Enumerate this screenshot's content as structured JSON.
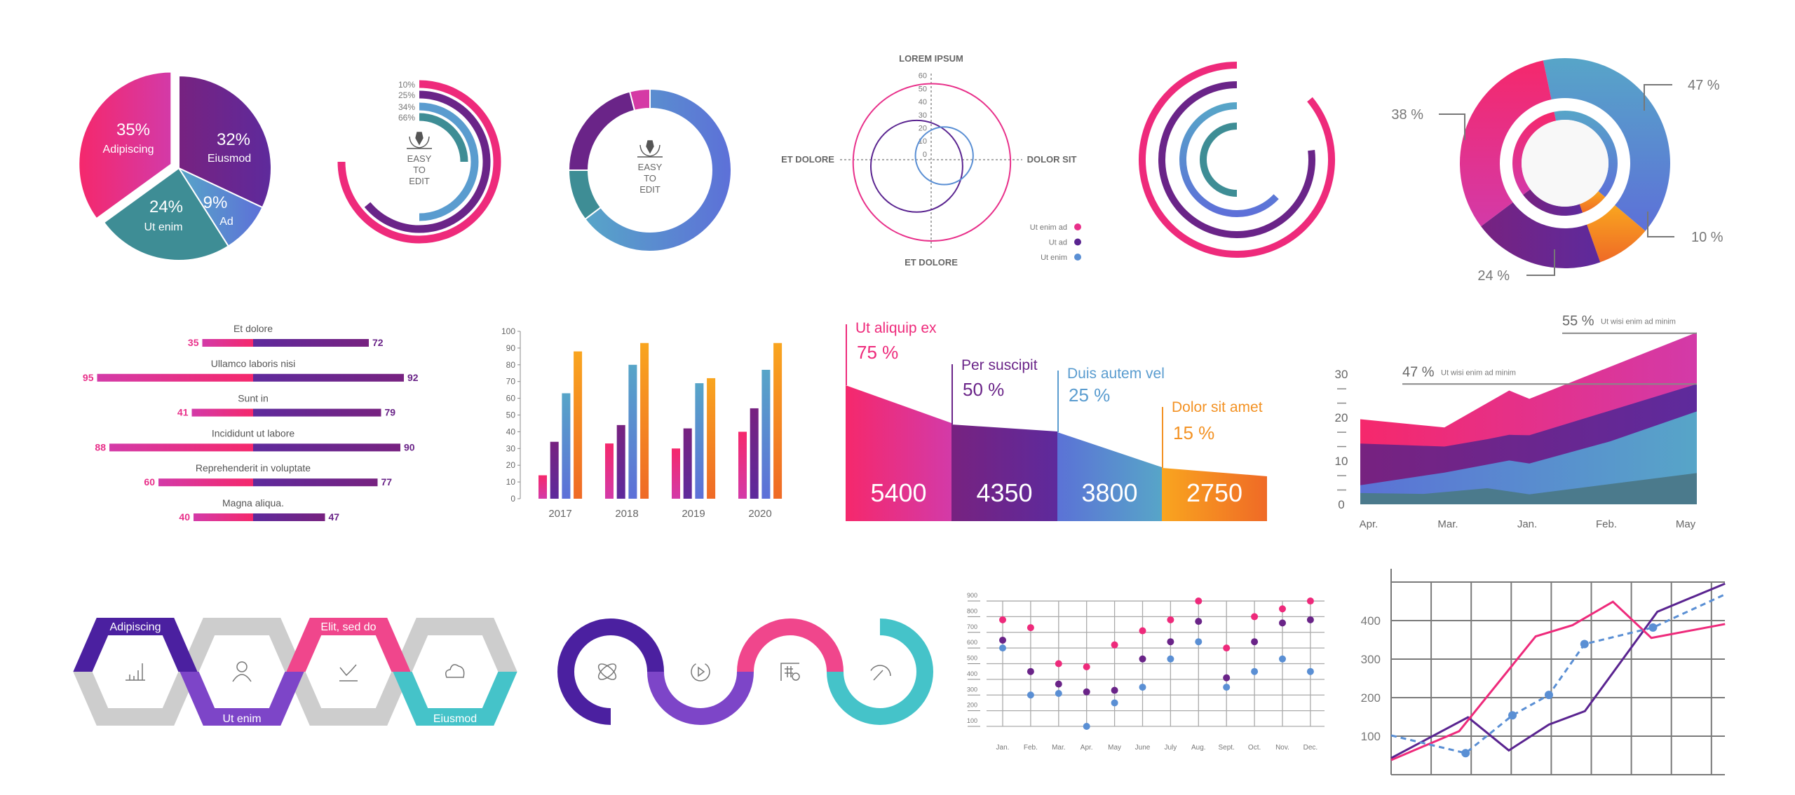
{
  "chart_data": [
    {
      "type": "pie",
      "slices": [
        {
          "label": "Eiusmod",
          "pct_label": "32%",
          "value": 32,
          "color": "#6a2488"
        },
        {
          "label": "Ad",
          "pct_label": "9%",
          "value": 9,
          "color": "#5b86d6"
        },
        {
          "label": "Ut enim",
          "pct_label": "24%",
          "value": 24,
          "color": "#3e8d95"
        },
        {
          "label": "Adipiscing",
          "pct_label": "35%",
          "value": 35,
          "color": "#e8308a",
          "exploded": true
        }
      ]
    },
    {
      "type": "radial_bar",
      "center_text": [
        "EASY",
        "TO",
        "EDIT"
      ],
      "center_icon": "pen-tool-icon",
      "bars": [
        {
          "label": "10%",
          "fraction": 0.75,
          "color": "#ee2a7b"
        },
        {
          "label": "25%",
          "fraction": 0.64,
          "color": "#6a2488"
        },
        {
          "label": "34%",
          "fraction": 0.5,
          "color": "#5a9ccf"
        },
        {
          "label": "66%",
          "fraction": 0.25,
          "color": "#3e8d95"
        }
      ]
    },
    {
      "type": "donut",
      "center_text": [
        "EASY",
        "TO",
        "EDIT"
      ],
      "center_icon": "pen-tool-icon",
      "segments": [
        {
          "value": 64.7,
          "color": "#5b8fd2"
        },
        {
          "value": 10.3,
          "color": "#3e8d95"
        },
        {
          "value": 21,
          "color": "#6a2488"
        },
        {
          "value": 4,
          "color": "#d53aa5"
        }
      ]
    },
    {
      "type": "polar_circles",
      "title": "LOREM IPSUM",
      "axis_labels": {
        "left": "ET DOLORE",
        "right": "DOLOR SIT",
        "bottom": "ET DOLORE"
      },
      "radial_ticks": [
        "0",
        "10",
        "20",
        "30",
        "40",
        "50",
        "60"
      ],
      "series": [
        {
          "name": "Ut enim ad",
          "color": "#e8308a",
          "center": [
            0.5,
            -2
          ],
          "radius": 60
        },
        {
          "name": "Ut ad",
          "color": "#5a2490",
          "center": [
            -11,
            -5
          ],
          "radius": 35
        },
        {
          "name": "Ut enim",
          "color": "#5a8fd4",
          "center": [
            10,
            3
          ],
          "radius": 22
        }
      ]
    },
    {
      "type": "radial_arcs",
      "arcs": [
        {
          "fraction": 0.86,
          "color": "#ee2a7b"
        },
        {
          "fraction": 0.77,
          "color": "#6a2488"
        },
        {
          "fraction": 0.63,
          "color": "#5b86d6"
        },
        {
          "fraction": 0.5,
          "color": "#3e8d95"
        }
      ]
    },
    {
      "type": "donut",
      "segments": [
        {
          "label": "47 %",
          "value": 47,
          "color": "#5b86d6"
        },
        {
          "label": "10 %",
          "value": 10,
          "color": "#f39224"
        },
        {
          "label": "24 %",
          "value": 24,
          "color": "#6a2488"
        },
        {
          "label": "38 %",
          "value": 38,
          "color": "#e8308a"
        }
      ]
    },
    {
      "type": "bar",
      "orientation": "diverging-horizontal",
      "rows": [
        {
          "label": "Et dolore",
          "left": 35,
          "right": 72
        },
        {
          "label": "Ullamco laboris nisi",
          "left": 95,
          "right": 92
        },
        {
          "label": "Sunt in",
          "left": 41,
          "right": 79
        },
        {
          "label": "Incididunt ut labore",
          "left": 88,
          "right": 90
        },
        {
          "label": "Reprehenderit in voluptate",
          "left": 60,
          "right": 77
        },
        {
          "label": "Magna aliqua.",
          "left": 40,
          "right": 47
        }
      ],
      "left_color": "#ee2a7b",
      "right_color": "#6a2488"
    },
    {
      "type": "bar",
      "categories": [
        "2017",
        "2018",
        "2019",
        "2020"
      ],
      "series": [
        {
          "values": [
            14,
            33,
            30,
            40
          ],
          "color": "#ee2a7b"
        },
        {
          "values": [
            34,
            44,
            42,
            54
          ],
          "color": "#6a2488"
        },
        {
          "values": [
            63,
            80,
            69,
            77
          ],
          "color": "#5a9ccf"
        },
        {
          "values": [
            88,
            93,
            72,
            93
          ],
          "color": "#f7a020"
        }
      ],
      "yticks": [
        "0",
        "10",
        "20",
        "30",
        "40",
        "50",
        "60",
        "70",
        "80",
        "90",
        "100"
      ],
      "ylim": [
        0,
        100
      ],
      "grid": false
    },
    {
      "type": "area",
      "style": "step-funnel",
      "segments": [
        {
          "label": "Ut aliquip ex",
          "percent": "75 %",
          "value": "5400",
          "color": "#ee2a7b"
        },
        {
          "label": "Per suscipit",
          "percent": "50 %",
          "value": "4350",
          "color": "#6a2488"
        },
        {
          "label": "Duis autem vel",
          "percent": "25 %",
          "value": "3800",
          "color": "#5a9ccf"
        },
        {
          "label": "Dolor sit amet",
          "percent": "15 %",
          "value": "2750",
          "color": "#f39224"
        }
      ]
    },
    {
      "type": "area",
      "stacked": true,
      "categories": [
        "Apr.",
        "Mar.",
        "Jan.",
        "Feb.",
        "May"
      ],
      "yticks": [
        "0",
        "10",
        "20",
        "30"
      ],
      "ylim": [
        0,
        40
      ],
      "series": [
        {
          "color": "#e8308a",
          "points": [
            [
              0,
              19.6
            ],
            [
              1,
              17.7
            ],
            [
              1.77,
              26.2
            ],
            [
              2.01,
              24.3
            ],
            [
              4,
              39.6
            ]
          ]
        },
        {
          "color": "#6a2488",
          "points": [
            [
              0,
              14
            ],
            [
              1,
              13.3
            ],
            [
              1.51,
              15
            ],
            [
              1.77,
              16
            ],
            [
              2.01,
              15.9
            ],
            [
              4,
              27.7
            ]
          ]
        },
        {
          "color": "#5b86d6",
          "points": [
            [
              0,
              4.4
            ],
            [
              1,
              7.3
            ],
            [
              1.77,
              10.1
            ],
            [
              2.01,
              9.4
            ],
            [
              2.97,
              14.5
            ],
            [
              4,
              21.4
            ]
          ]
        },
        {
          "color": "#4b7a8c",
          "points": [
            [
              0,
              2.6
            ],
            [
              0.75,
              2.4
            ],
            [
              1.51,
              3.7
            ],
            [
              2.01,
              2.3
            ],
            [
              4,
              7.2
            ]
          ]
        }
      ],
      "annotations": [
        {
          "value": "47 %",
          "text": "Ut wisi enim ad minim",
          "y": 27.7,
          "x_from": 0.5
        },
        {
          "value": "55 %",
          "text": "Ut wisi enim ad minim",
          "y": 39.4,
          "x_from": 2.4
        }
      ]
    },
    {
      "type": "infographic",
      "style": "hexagon-steps",
      "steps": [
        {
          "label": "Adipiscing",
          "icon": "bar-chart-icon",
          "color": "#4b20a0",
          "half": "top"
        },
        {
          "label": "Ut enim",
          "icon": "user-icon",
          "color": "#7d45c8",
          "half": "bottom"
        },
        {
          "label": "Elit, sed do",
          "icon": "line-chart-icon",
          "color": "#f0468c",
          "half": "top"
        },
        {
          "label": "Eiusmod",
          "icon": "cloud-icon",
          "color": "#45c3c9",
          "half": "bottom"
        }
      ]
    },
    {
      "type": "infographic",
      "style": "wave-steps",
      "steps": [
        {
          "icon": "atom-icon",
          "color": "#4b20a0"
        },
        {
          "icon": "play-refresh-icon",
          "color": "#7d45c8"
        },
        {
          "icon": "calculator-icon",
          "color": "#f0468c"
        },
        {
          "icon": "gauge-icon",
          "color": "#45c3c9"
        }
      ]
    },
    {
      "type": "scatter",
      "categories": [
        "Jan.",
        "Feb.",
        "Mar.",
        "Apr.",
        "May",
        "June",
        "July",
        "Aug.",
        "Sept.",
        "Oct.",
        "Nov.",
        "Dec."
      ],
      "yticks": [
        "100",
        "200",
        "300",
        "400",
        "500",
        "600",
        "700",
        "800",
        "900"
      ],
      "ylim": [
        100,
        900
      ],
      "grid": true,
      "series": [
        {
          "color": "#ee2a7b",
          "values": [
            780,
            730,
            500,
            480,
            620,
            710,
            780,
            900,
            600,
            800,
            850,
            900
          ]
        },
        {
          "color": "#6a2488",
          "values": [
            650,
            450,
            370,
            320,
            330,
            530,
            640,
            770,
            410,
            640,
            760,
            780
          ]
        },
        {
          "color": "#5a8fd4",
          "values": [
            600,
            300,
            310,
            100,
            250,
            350,
            530,
            640,
            350,
            450,
            530,
            450
          ]
        }
      ]
    },
    {
      "type": "line",
      "yticks": [
        "100",
        "200",
        "300",
        "400"
      ],
      "ylim": [
        0,
        500
      ],
      "grid": true,
      "series": [
        {
          "color": "#5a2490",
          "style": "solid",
          "points": [
            [
              0,
              43
            ],
            [
              1.92,
              149
            ],
            [
              2.94,
              63
            ],
            [
              3.94,
              130
            ],
            [
              4.84,
              165
            ],
            [
              6.65,
              423
            ],
            [
              8.34,
              496
            ]
          ]
        },
        {
          "color": "#ee2a7b",
          "style": "solid",
          "points": [
            [
              0,
              38
            ],
            [
              1.7,
              113
            ],
            [
              3.61,
              359
            ],
            [
              4.53,
              388
            ],
            [
              5.54,
              449
            ],
            [
              6.5,
              355
            ],
            [
              8.34,
              391
            ]
          ]
        },
        {
          "color": "#5a8fd4",
          "style": "dashed",
          "markers": true,
          "points": [
            [
              0,
              102
            ],
            [
              1.86,
              56
            ],
            [
              3.03,
              154
            ],
            [
              3.94,
              207
            ],
            [
              4.83,
              339
            ],
            [
              6.54,
              382
            ],
            [
              8.34,
              468
            ]
          ]
        }
      ]
    }
  ]
}
